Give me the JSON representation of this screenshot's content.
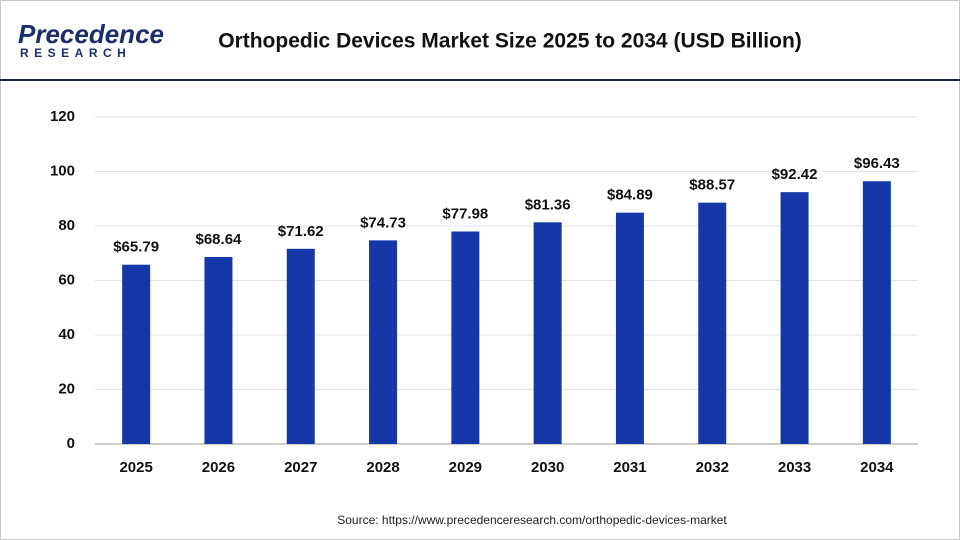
{
  "logo": {
    "name": "Precedence",
    "tagline": "RESEARCH"
  },
  "chart_data": {
    "type": "bar",
    "title": "Orthopedic Devices Market Size 2025 to 2034 (USD Billion)",
    "categories": [
      "2025",
      "2026",
      "2027",
      "2028",
      "2029",
      "2030",
      "2031",
      "2032",
      "2033",
      "2034"
    ],
    "values": [
      65.79,
      68.64,
      71.62,
      74.73,
      77.98,
      81.36,
      84.89,
      88.57,
      92.42,
      96.43
    ],
    "value_labels": [
      "$65.79",
      "$68.64",
      "$71.62",
      "$74.73",
      "$77.98",
      "$81.36",
      "$84.89",
      "$88.57",
      "$92.42",
      "$96.43"
    ],
    "color": "#1637a8",
    "ylim": [
      0,
      120
    ],
    "yticks": [
      0,
      20,
      40,
      60,
      80,
      100,
      120
    ],
    "grid": true,
    "source": "Source: https://www.precedenceresearch.com/orthopedic-devices-market"
  }
}
